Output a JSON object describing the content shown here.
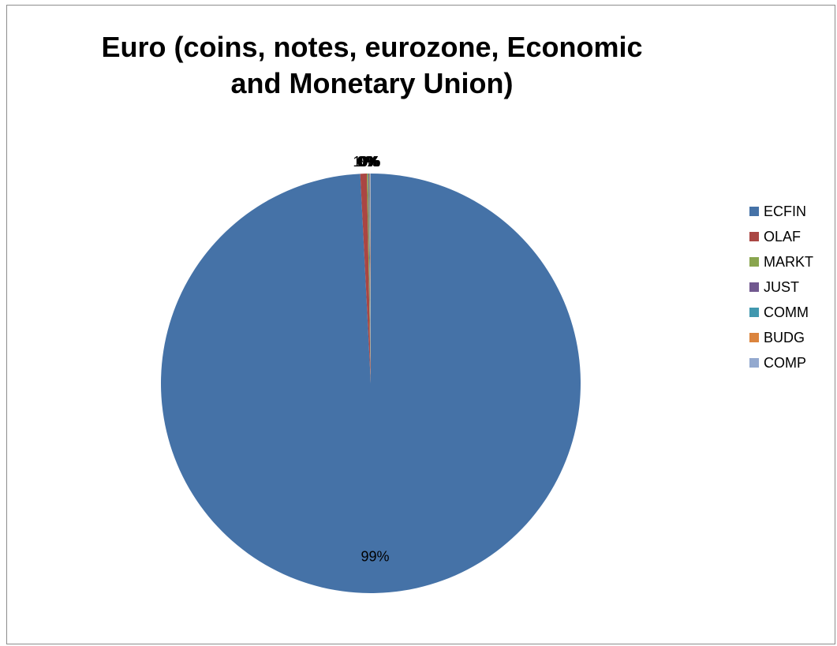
{
  "chart_data": {
    "type": "pie",
    "title": "Euro (coins, notes, eurozone, Economic and Monetary Union)",
    "categories": [
      "ECFIN",
      "OLAF",
      "MARKT",
      "JUST",
      "COMM",
      "BUDG",
      "COMP"
    ],
    "values": [
      99.2,
      0.5,
      0.1,
      0.05,
      0.05,
      0.05,
      0.05
    ],
    "labels": [
      "99%",
      "1%",
      "0%",
      "0%",
      "0%",
      "0%",
      "0%"
    ],
    "colors": [
      "#4572A7",
      "#AA4643",
      "#89A54E",
      "#71588F",
      "#4198AF",
      "#DB843D",
      "#93A9CF"
    ],
    "legend_position": "right",
    "start_angle_deg": 0,
    "direction": "clockwise"
  }
}
